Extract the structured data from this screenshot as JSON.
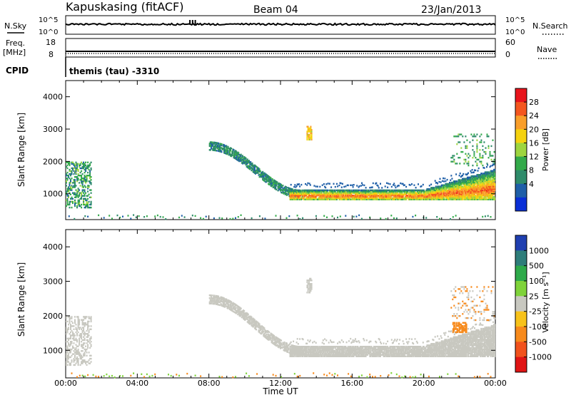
{
  "header": {
    "site": "Kapuskasing (fitACF)",
    "beam": "Beam 04",
    "date": "23/Jan/2013"
  },
  "panel_labels": {
    "nsky": "N.Sky",
    "nsearch": "N.Search",
    "freq": "Freq.",
    "mhz": "[MHz]",
    "nave": "Nave",
    "cpid": "CPID",
    "cpid_value": "themis (tau) -3310"
  },
  "small_ticks": {
    "nsky_left": [
      "10^5",
      "10^0"
    ],
    "nsky_right": [
      "10^5",
      "10^0"
    ],
    "freq_left": [
      "18",
      "8"
    ],
    "freq_right": [
      "60",
      "0"
    ]
  },
  "colorbars": {
    "power": {
      "label": "Power [dB]",
      "ticks": [
        "28",
        "24",
        "20",
        "16",
        "12",
        "8",
        "4"
      ],
      "colors": [
        "#e8141c",
        "#f4561f",
        "#f99e2a",
        "#f5d20f",
        "#9ed53f",
        "#33aa4a",
        "#2e8b6a",
        "#1f5fa8",
        "#0a2fd6"
      ]
    },
    "velocity": {
      "label": "Velocity [m s⁻¹]",
      "ticks": [
        "1000",
        "500",
        "100",
        "25",
        "-25",
        "-100",
        "-500",
        "-1000"
      ],
      "colors": [
        "#1f3fb0",
        "#2e7d7a",
        "#2eaa4a",
        "#7fd33a",
        "#c8c8c0",
        "#f7c21a",
        "#f78a1c",
        "#f1521c",
        "#e01414"
      ]
    }
  },
  "chart_data": [
    {
      "type": "heatmap",
      "title": "Power",
      "xlabel": "Time UT",
      "ylabel": "Slant Range [km]",
      "x_ticks": [
        "00:00",
        "04:00",
        "08:00",
        "12:00",
        "16:00",
        "20:00",
        "00:00"
      ],
      "y_ticks": [
        "1000",
        "2000",
        "3000",
        "4000"
      ],
      "xlim_hours": [
        0,
        24
      ],
      "ylim_km": [
        200,
        4500
      ],
      "colorbar": "Power [dB]",
      "color_range_db": [
        0,
        32
      ],
      "features": [
        {
          "name": "early patch",
          "time_h": [
            0.0,
            1.4
          ],
          "range_km": [
            600,
            2000
          ],
          "power_db": 10
        },
        {
          "name": "descending band",
          "time_h": [
            8.0,
            13.0
          ],
          "range_km_start": 2500,
          "range_km_end": 1000,
          "power_db": 8
        },
        {
          "name": "main echo band",
          "time_h": [
            12.5,
            24.0
          ],
          "range_km": [
            800,
            1700
          ],
          "power_db": 20
        },
        {
          "name": "isolated patch",
          "time_h": [
            13.5,
            13.7
          ],
          "range_km": [
            2700,
            3100
          ],
          "power_db": 18
        },
        {
          "name": "late scatter",
          "time_h": [
            21.5,
            24.0
          ],
          "range_km": [
            2000,
            2800
          ],
          "power_db": 12
        }
      ]
    },
    {
      "type": "heatmap",
      "title": "Velocity",
      "xlabel": "Time UT",
      "ylabel": "Slant Range [km]",
      "x_ticks": [
        "00:00",
        "04:00",
        "08:00",
        "12:00",
        "16:00",
        "20:00",
        "00:00"
      ],
      "y_ticks": [
        "1000",
        "2000",
        "3000",
        "4000"
      ],
      "xlim_hours": [
        0,
        24
      ],
      "ylim_km": [
        200,
        4500
      ],
      "colorbar": "Velocity [m s⁻¹]",
      "color_range": [
        -1000,
        1000
      ],
      "features": [
        {
          "name": "ground scatter band",
          "time_h": [
            8.0,
            24.0
          ],
          "velocity": 0
        },
        {
          "name": "late negative patch",
          "time_h": [
            21.5,
            22.5
          ],
          "range_km": [
            1600,
            1800
          ],
          "velocity": -100
        }
      ]
    }
  ]
}
